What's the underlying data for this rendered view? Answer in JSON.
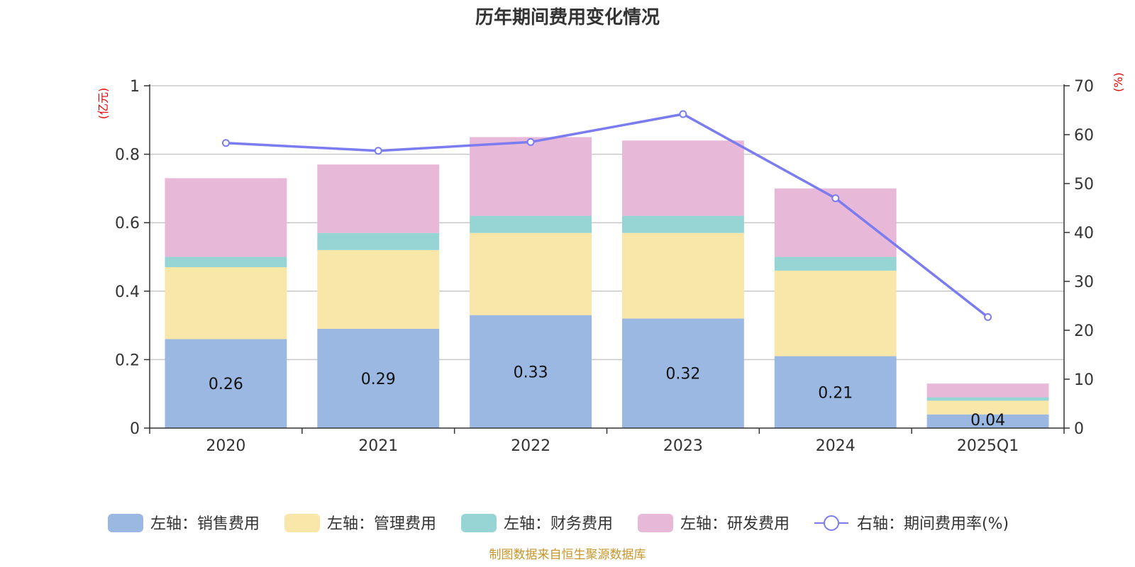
{
  "chart_data": {
    "type": "bar",
    "stacked": true,
    "title": "历年期间费用变化情况",
    "categories": [
      "2020",
      "2021",
      "2022",
      "2023",
      "2024",
      "2025Q1"
    ],
    "y_left": {
      "unit": "(亿元)",
      "ylim": [
        0,
        1
      ],
      "ticks": [
        "0",
        "0.2",
        "0.4",
        "0.6",
        "0.8",
        "1"
      ]
    },
    "y_right": {
      "unit": "(%)",
      "ylim": [
        0,
        70
      ],
      "ticks": [
        "0",
        "10",
        "20",
        "30",
        "40",
        "50",
        "60",
        "70"
      ]
    },
    "grid": true,
    "legend_position": "bottom",
    "series": [
      {
        "name": "左轴：销售费用",
        "axis": "left",
        "color": "#9bb8e3",
        "values": [
          0.26,
          0.29,
          0.33,
          0.32,
          0.21,
          0.04
        ],
        "labels": [
          "0.26",
          "0.29",
          "0.33",
          "0.32",
          "0.21",
          "0.04"
        ]
      },
      {
        "name": "左轴：管理费用",
        "axis": "left",
        "color": "#f8e7a8",
        "values": [
          0.21,
          0.23,
          0.24,
          0.25,
          0.25,
          0.04
        ]
      },
      {
        "name": "左轴：财务费用",
        "axis": "left",
        "color": "#97d4d4",
        "values": [
          0.03,
          0.05,
          0.05,
          0.05,
          0.04,
          0.01
        ]
      },
      {
        "name": "左轴：研发费用",
        "axis": "left",
        "color": "#e8b8d9",
        "values": [
          0.23,
          0.2,
          0.23,
          0.22,
          0.2,
          0.04
        ]
      },
      {
        "name": "右轴：期间费用率(%)",
        "axis": "right",
        "type": "line",
        "color": "#7b7cf0",
        "values": [
          58.3,
          56.7,
          58.5,
          64.2,
          47.0,
          22.7
        ]
      }
    ]
  },
  "source_note": "制图数据来自恒生聚源数据库"
}
